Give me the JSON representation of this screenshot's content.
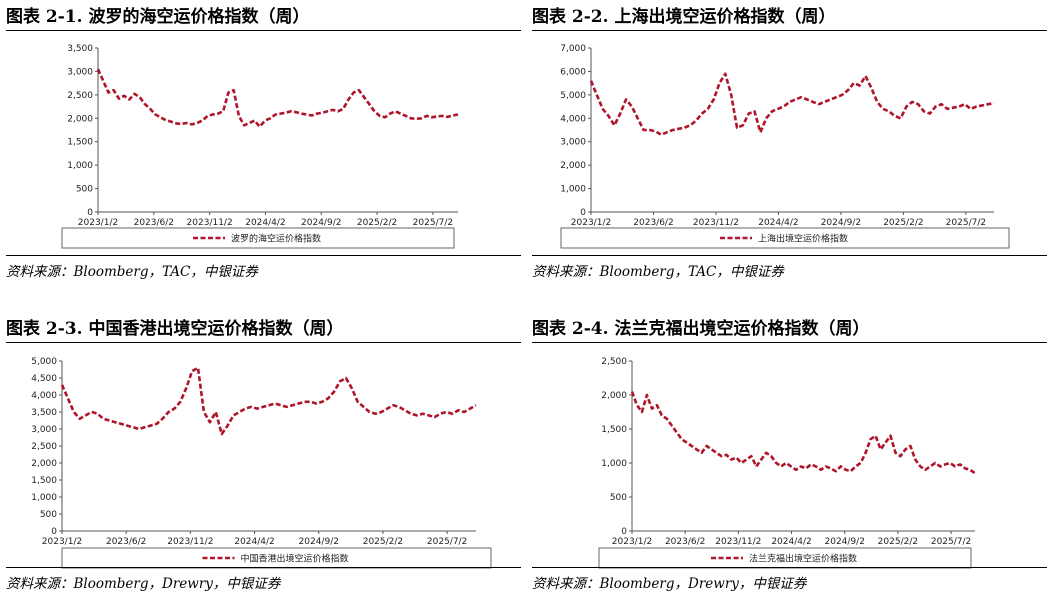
{
  "colors": {
    "line": "#b0142a",
    "axis": "#555555",
    "frame": "#666666"
  },
  "chart_data": [
    {
      "type": "line",
      "title": "图表 2-1. 波罗的海空运价格指数（周）",
      "source": "资料来源：Bloomberg，TAC，中银证券",
      "legend": "波罗的海空运价格指数",
      "ylim": [
        0,
        3500
      ],
      "yticks": [
        "0",
        "500",
        "1,000",
        "1,500",
        "2,000",
        "2,500",
        "3,000",
        "3,500"
      ],
      "xticks": [
        "2023/1/2",
        "2023/6/2",
        "2023/11/2",
        "2024/4/2",
        "2024/9/2",
        "2025/2/2",
        "2025/7/2"
      ],
      "series": [
        {
          "name": "波罗的海空运价格指数",
          "values": [
            3050,
            2800,
            2550,
            2600,
            2420,
            2480,
            2400,
            2520,
            2450,
            2300,
            2200,
            2080,
            2020,
            1960,
            1930,
            1890,
            1880,
            1900,
            1870,
            1900,
            1950,
            2050,
            2080,
            2100,
            2150,
            2550,
            2600,
            2050,
            1850,
            1900,
            1950,
            1820,
            1950,
            2000,
            2080,
            2100,
            2120,
            2150,
            2130,
            2100,
            2080,
            2060,
            2100,
            2120,
            2150,
            2180,
            2150,
            2200,
            2400,
            2550,
            2600,
            2450,
            2300,
            2150,
            2050,
            2020,
            2100,
            2150,
            2100,
            2050,
            2000,
            1990,
            2000,
            2050,
            2020,
            2040,
            2050,
            2030,
            2060,
            2080
          ]
        }
      ]
    },
    {
      "type": "line",
      "title": "图表 2-2. 上海出境空运价格指数（周）",
      "source": "资料来源：Bloomberg，TAC，中银证券",
      "legend": "上海出境空运价格指数",
      "ylim": [
        0,
        7000
      ],
      "yticks": [
        "0",
        "1,000",
        "2,000",
        "3,000",
        "4,000",
        "5,000",
        "6,000",
        "7,000"
      ],
      "xticks": [
        "2023/1/2",
        "2023/6/2",
        "2023/11/2",
        "2024/4/2",
        "2024/9/2",
        "2025/2/2",
        "2025/7/2"
      ],
      "series": [
        {
          "name": "上海出境空运价格指数",
          "values": [
            5600,
            5000,
            4400,
            4100,
            3700,
            4200,
            4800,
            4500,
            4000,
            3500,
            3500,
            3450,
            3300,
            3400,
            3500,
            3550,
            3600,
            3700,
            3900,
            4200,
            4400,
            4800,
            5500,
            5900,
            5000,
            3600,
            3700,
            4200,
            4300,
            3400,
            4000,
            4300,
            4400,
            4500,
            4700,
            4800,
            4900,
            4800,
            4700,
            4600,
            4700,
            4800,
            4900,
            5000,
            5200,
            5500,
            5400,
            5800,
            5300,
            4700,
            4400,
            4300,
            4100,
            4000,
            4500,
            4700,
            4600,
            4300,
            4200,
            4500,
            4600,
            4400,
            4450,
            4500,
            4600,
            4400,
            4500,
            4550,
            4600,
            4650
          ]
        }
      ]
    },
    {
      "type": "line",
      "title": "图表 2-3. 中国香港出境空运价格指数（周）",
      "source": "资料来源：Bloomberg，Drewry，中银证券",
      "legend": "中国香港出境空运价格指数",
      "ylim": [
        0,
        5000
      ],
      "yticks": [
        "0",
        "500",
        "1,000",
        "1,500",
        "2,000",
        "2,500",
        "3,000",
        "3,500",
        "4,000",
        "4,500",
        "5,000"
      ],
      "xticks": [
        "2023/1/2",
        "2023/6/2",
        "2023/11/2",
        "2024/4/2",
        "2024/9/2",
        "2025/2/2",
        "2025/7/2"
      ],
      "series": [
        {
          "name": "中国香港出境空运价格指数",
          "values": [
            4300,
            3900,
            3500,
            3300,
            3400,
            3500,
            3450,
            3300,
            3250,
            3200,
            3150,
            3100,
            3050,
            3000,
            3050,
            3100,
            3150,
            3300,
            3500,
            3600,
            3800,
            4200,
            4700,
            4800,
            3500,
            3200,
            3500,
            2850,
            3100,
            3400,
            3500,
            3600,
            3650,
            3600,
            3650,
            3700,
            3750,
            3700,
            3650,
            3700,
            3750,
            3800,
            3800,
            3750,
            3800,
            3900,
            4100,
            4400,
            4500,
            4200,
            3800,
            3650,
            3500,
            3450,
            3500,
            3600,
            3700,
            3650,
            3550,
            3450,
            3400,
            3450,
            3400,
            3350,
            3450,
            3500,
            3450,
            3550,
            3500,
            3600,
            3700
          ]
        }
      ]
    },
    {
      "type": "line",
      "title": "图表 2-4. 法兰克福出境空运价格指数（周）",
      "source": "资料来源：Bloomberg，Drewry，中银证券",
      "legend": "法兰克福出境空运价格指数",
      "ylim": [
        0,
        2500
      ],
      "yticks": [
        "0",
        "500",
        "1,000",
        "1,500",
        "2,000",
        "2,500"
      ],
      "xticks": [
        "2023/1/2",
        "2023/6/2",
        "2023/11/2",
        "2024/4/2",
        "2024/9/2",
        "2025/2/2",
        "2025/7/2"
      ],
      "series": [
        {
          "name": "法兰克福出境空运价格指数",
          "values": [
            2050,
            1850,
            1750,
            2000,
            1800,
            1850,
            1700,
            1650,
            1550,
            1450,
            1350,
            1300,
            1250,
            1200,
            1150,
            1250,
            1200,
            1150,
            1100,
            1120,
            1050,
            1080,
            1000,
            1050,
            1100,
            950,
            1050,
            1150,
            1100,
            1000,
            950,
            1000,
            950,
            900,
            950,
            920,
            980,
            950,
            900,
            950,
            920,
            880,
            950,
            900,
            880,
            950,
            1000,
            1150,
            1350,
            1400,
            1200,
            1300,
            1400,
            1150,
            1100,
            1200,
            1250,
            1050,
            950,
            900,
            950,
            1000,
            950,
            980,
            1000,
            950,
            980,
            920,
            900,
            850
          ]
        }
      ]
    }
  ]
}
